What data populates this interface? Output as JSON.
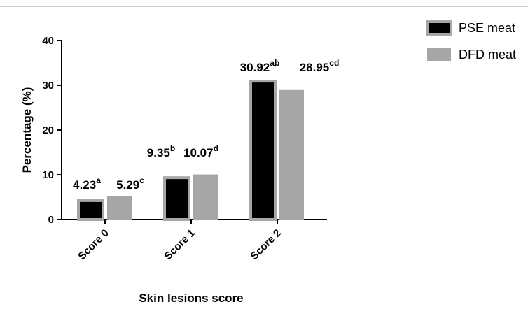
{
  "chart_data": {
    "type": "bar",
    "title": "",
    "xlabel": "Skin lesions score",
    "ylabel": "Percentage (%)",
    "categories": [
      "Score 0",
      "Score 1",
      "Score 2"
    ],
    "ylim": [
      0,
      40
    ],
    "yticks": [
      "0",
      "10",
      "20",
      "30",
      "40"
    ],
    "grid": false,
    "legend_position": "top-right",
    "series": [
      {
        "name": "PSE meat",
        "color": "#000000",
        "values": [
          4.23,
          9.35,
          30.92
        ],
        "labels": [
          "4.23",
          "9.35",
          "30.92"
        ],
        "superscripts": [
          "a",
          "b",
          "ab"
        ]
      },
      {
        "name": "DFD meat",
        "color": "#a6a6a6",
        "values": [
          5.29,
          10.07,
          28.95
        ],
        "labels": [
          "5.29",
          "10.07",
          "28.95"
        ],
        "superscripts": [
          "c",
          "d",
          "cd"
        ]
      }
    ]
  }
}
